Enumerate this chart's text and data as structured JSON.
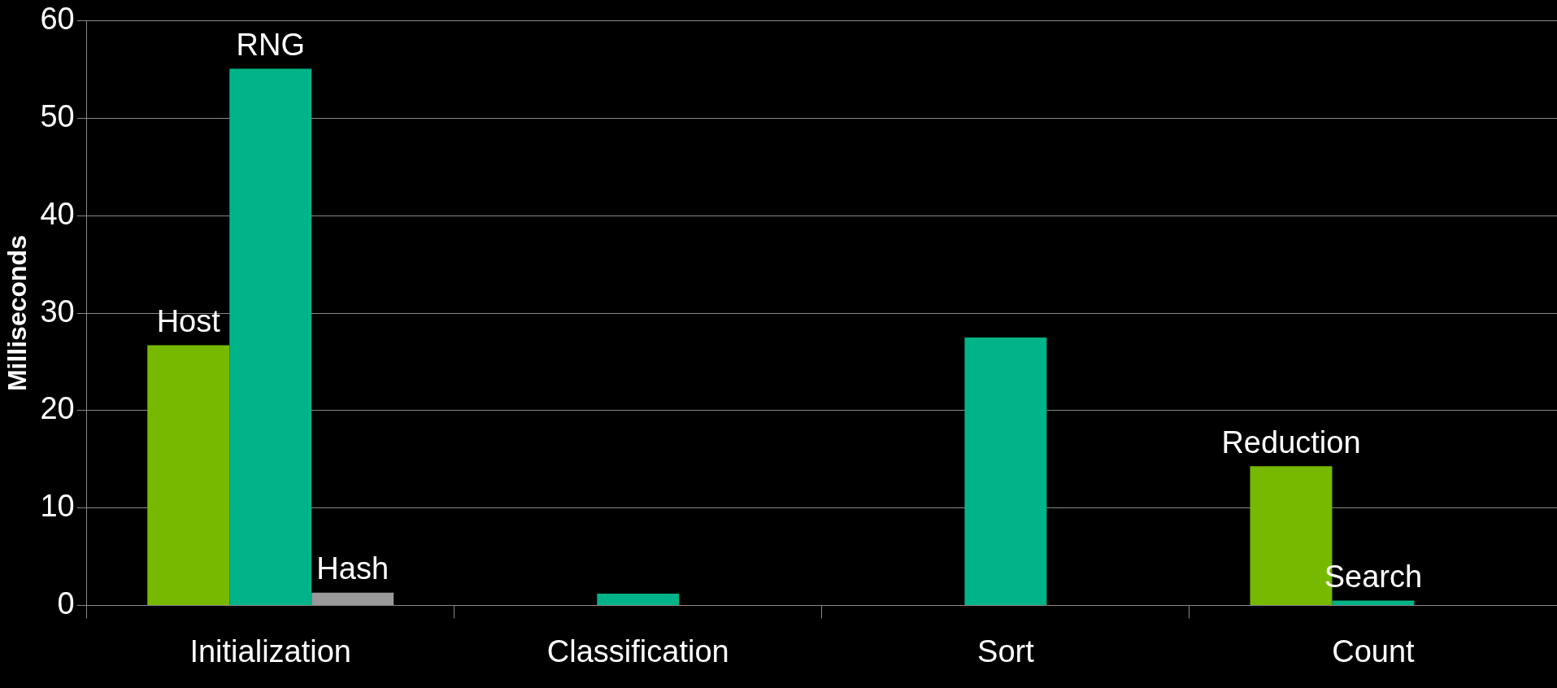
{
  "chart_data": {
    "type": "bar",
    "ylabel": "Milliseconds",
    "categories": [
      "Initialization",
      "Classification",
      "Sort",
      "Count"
    ],
    "series": [
      {
        "color": "#76b900",
        "values": [
          26.7,
          null,
          null,
          14.3
        ],
        "value_labels": [
          "Host",
          null,
          null,
          "Reduction"
        ]
      },
      {
        "color": "#00b388",
        "values": [
          55.1,
          1.2,
          27.5,
          0.5
        ],
        "value_labels": [
          "RNG",
          null,
          null,
          "Search"
        ]
      },
      {
        "color": "#999999",
        "values": [
          1.3,
          null,
          null,
          null
        ],
        "value_labels": [
          "Hash",
          null,
          null,
          null
        ]
      }
    ],
    "ylim": [
      0,
      60
    ],
    "yticks": [
      0,
      10,
      20,
      30,
      40,
      50,
      60
    ],
    "grid": "y",
    "legend": false
  }
}
